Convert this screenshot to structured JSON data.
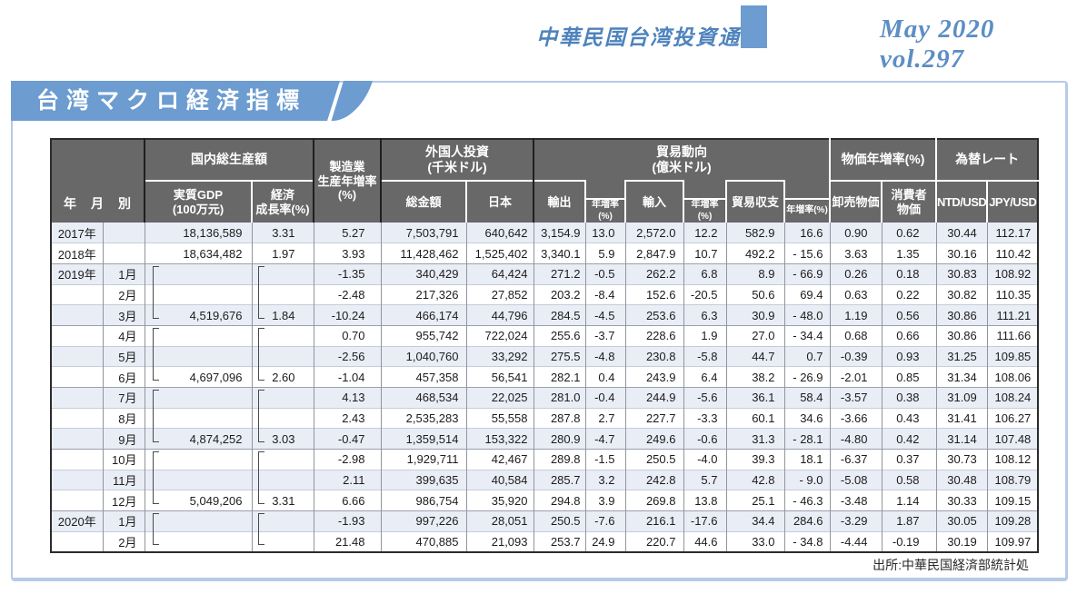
{
  "colors": {
    "accent": "#6c9cd0",
    "titleblue": "#4e83bd",
    "hgray": "#686868",
    "stripe": "#e9edf6",
    "pborder": "#b6cbe7"
  },
  "page": {
    "publication": "中華民国台湾投資通信",
    "issue": "May 2020 vol.297",
    "section_title": "台湾マクロ経済指標",
    "source": "出所:中華民国経済部統計処"
  },
  "table": {
    "header": {
      "year_month": "年　月　別",
      "groups": {
        "gdp": "国内総生産額",
        "mfg": "製造業\n生産年増率\n(%)",
        "foreign": "外国人投資\n(千米ドル)",
        "trade": "貿易動向\n(億米ドル)",
        "price": "物価年増率(%)",
        "fx": "為替レート"
      },
      "cols": {
        "real_gdp": "実質GDP\n(100万元)",
        "growth": "経済\n成長率(%)",
        "total": "総金額",
        "japan": "日本",
        "export": "輸出",
        "yoy": "年増率(%)",
        "import": "輸入",
        "balance": "貿易収支",
        "wholesale": "卸売物価",
        "consumer": "消費者\n物価",
        "ntd": "NTD/USD",
        "jpy": "JPY/USD"
      }
    },
    "rows": [
      {
        "year": "2017年",
        "month": "",
        "gdp": "18,136,589",
        "growth": "3.31",
        "mfg": "5.27",
        "total": "7,503,791",
        "japan": "640,642",
        "export": "3,154.9",
        "export_yoy": "13.0",
        "import": "2,572.0",
        "import_yoy": "12.2",
        "balance": "582.9",
        "balance_yoy": "16.6",
        "wholesale": "0.90",
        "consumer": "0.62",
        "ntd": "30.44",
        "jpy": "112.17"
      },
      {
        "year": "2018年",
        "month": "",
        "gdp": "18,634,482",
        "growth": "1.97",
        "mfg": "3.93",
        "total": "11,428,462",
        "japan": "1,525,402",
        "export": "3,340.1",
        "export_yoy": "5.9",
        "import": "2,847.9",
        "import_yoy": "10.7",
        "balance": "492.2",
        "balance_yoy": "- 15.6",
        "wholesale": "3.63",
        "consumer": "1.35",
        "ntd": "30.16",
        "jpy": "110.42"
      },
      {
        "year": "2019年",
        "month": "1月",
        "sep": true,
        "gdp": "",
        "growth": "",
        "mfg": "-1.35",
        "total": "340,429",
        "japan": "64,424",
        "export": "271.2",
        "export_yoy": "-0.5",
        "import": "262.2",
        "import_yoy": "6.8",
        "balance": "8.9",
        "balance_yoy": "- 66.9",
        "wholesale": "0.26",
        "consumer": "0.18",
        "ntd": "30.83",
        "jpy": "108.92"
      },
      {
        "year": "",
        "month": "2月",
        "gdp": "",
        "growth": "",
        "mfg": "-2.48",
        "total": "217,326",
        "japan": "27,852",
        "export": "203.2",
        "export_yoy": "-8.4",
        "import": "152.6",
        "import_yoy": "-20.5",
        "balance": "50.6",
        "balance_yoy": "69.4",
        "wholesale": "0.63",
        "consumer": "0.22",
        "ntd": "30.82",
        "jpy": "110.35"
      },
      {
        "year": "",
        "month": "3月",
        "bracket": "b3",
        "gdp": "4,519,676",
        "growth": "1.84",
        "mfg": "-10.24",
        "total": "466,174",
        "japan": "44,796",
        "export": "284.5",
        "export_yoy": "-4.5",
        "import": "253.6",
        "import_yoy": "6.3",
        "balance": "30.9",
        "balance_yoy": "- 48.0",
        "wholesale": "1.19",
        "consumer": "0.56",
        "ntd": "30.86",
        "jpy": "111.21"
      },
      {
        "year": "",
        "month": "4月",
        "sep": true,
        "gdp": "",
        "growth": "",
        "mfg": "0.70",
        "total": "955,742",
        "japan": "722,024",
        "export": "255.6",
        "export_yoy": "-3.7",
        "import": "228.6",
        "import_yoy": "1.9",
        "balance": "27.0",
        "balance_yoy": "- 34.4",
        "wholesale": "0.68",
        "consumer": "0.66",
        "ntd": "30.86",
        "jpy": "111.66"
      },
      {
        "year": "",
        "month": "5月",
        "gdp": "",
        "growth": "",
        "mfg": "-2.56",
        "total": "1,040,760",
        "japan": "33,292",
        "export": "275.5",
        "export_yoy": "-4.8",
        "import": "230.8",
        "import_yoy": "-5.8",
        "balance": "44.7",
        "balance_yoy": "0.7",
        "wholesale": "-0.39",
        "consumer": "0.93",
        "ntd": "31.25",
        "jpy": "109.85"
      },
      {
        "year": "",
        "month": "6月",
        "bracket": "b3",
        "gdp": "4,697,096",
        "growth": "2.60",
        "mfg": "-1.04",
        "total": "457,358",
        "japan": "56,541",
        "export": "282.1",
        "export_yoy": "0.4",
        "import": "243.9",
        "import_yoy": "6.4",
        "balance": "38.2",
        "balance_yoy": "- 26.9",
        "wholesale": "-2.01",
        "consumer": "0.85",
        "ntd": "31.34",
        "jpy": "108.06"
      },
      {
        "year": "",
        "month": "7月",
        "sep": true,
        "gdp": "",
        "growth": "",
        "mfg": "4.13",
        "total": "468,534",
        "japan": "22,025",
        "export": "281.0",
        "export_yoy": "-0.4",
        "import": "244.9",
        "import_yoy": "-5.6",
        "balance": "36.1",
        "balance_yoy": "58.4",
        "wholesale": "-3.57",
        "consumer": "0.38",
        "ntd": "31.09",
        "jpy": "108.24"
      },
      {
        "year": "",
        "month": "8月",
        "gdp": "",
        "growth": "",
        "mfg": "2.43",
        "total": "2,535,283",
        "japan": "55,558",
        "export": "287.8",
        "export_yoy": "2.7",
        "import": "227.7",
        "import_yoy": "-3.3",
        "balance": "60.1",
        "balance_yoy": "34.6",
        "wholesale": "-3.66",
        "consumer": "0.43",
        "ntd": "31.41",
        "jpy": "106.27"
      },
      {
        "year": "",
        "month": "9月",
        "bracket": "b3",
        "gdp": "4,874,252",
        "growth": "3.03",
        "mfg": "-0.47",
        "total": "1,359,514",
        "japan": "153,322",
        "export": "280.9",
        "export_yoy": "-4.7",
        "import": "249.6",
        "import_yoy": "-0.6",
        "balance": "31.3",
        "balance_yoy": "- 28.1",
        "wholesale": "-4.80",
        "consumer": "0.42",
        "ntd": "31.14",
        "jpy": "107.48"
      },
      {
        "year": "",
        "month": "10月",
        "sep": true,
        "gdp": "",
        "growth": "",
        "mfg": "-2.98",
        "total": "1,929,711",
        "japan": "42,467",
        "export": "289.8",
        "export_yoy": "-1.5",
        "import": "250.5",
        "import_yoy": "-4.0",
        "balance": "39.3",
        "balance_yoy": "18.1",
        "wholesale": "-6.37",
        "consumer": "0.37",
        "ntd": "30.73",
        "jpy": "108.12"
      },
      {
        "year": "",
        "month": "11月",
        "gdp": "",
        "growth": "",
        "mfg": "2.11",
        "total": "399,635",
        "japan": "40,584",
        "export": "285.7",
        "export_yoy": "3.2",
        "import": "242.8",
        "import_yoy": "5.7",
        "balance": "42.8",
        "balance_yoy": "- 9.0",
        "wholesale": "-5.08",
        "consumer": "0.58",
        "ntd": "30.48",
        "jpy": "108.79"
      },
      {
        "year": "",
        "month": "12月",
        "bracket": "b3",
        "gdp": "5,049,206",
        "growth": "3.31",
        "mfg": "6.66",
        "total": "986,754",
        "japan": "35,920",
        "export": "294.8",
        "export_yoy": "3.9",
        "import": "269.8",
        "import_yoy": "13.8",
        "balance": "25.1",
        "balance_yoy": "- 46.3",
        "wholesale": "-3.48",
        "consumer": "1.14",
        "ntd": "30.33",
        "jpy": "109.15"
      },
      {
        "year": "2020年",
        "month": "1月",
        "sep": true,
        "gdp": "",
        "growth": "",
        "mfg": "-1.93",
        "total": "997,226",
        "japan": "28,051",
        "export": "250.5",
        "export_yoy": "-7.6",
        "import": "216.1",
        "import_yoy": "-17.6",
        "balance": "34.4",
        "balance_yoy": "284.6",
        "wholesale": "-3.29",
        "consumer": "1.87",
        "ntd": "30.05",
        "jpy": "109.28"
      },
      {
        "year": "",
        "month": "2月",
        "bracket": "b2",
        "gdp": "",
        "growth": "",
        "mfg": "21.48",
        "total": "470,885",
        "japan": "21,093",
        "export": "253.7",
        "export_yoy": "24.9",
        "import": "220.7",
        "import_yoy": "44.6",
        "balance": "33.0",
        "balance_yoy": "- 34.8",
        "wholesale": "-4.44",
        "consumer": "-0.19",
        "ntd": "30.19",
        "jpy": "109.97"
      }
    ]
  }
}
